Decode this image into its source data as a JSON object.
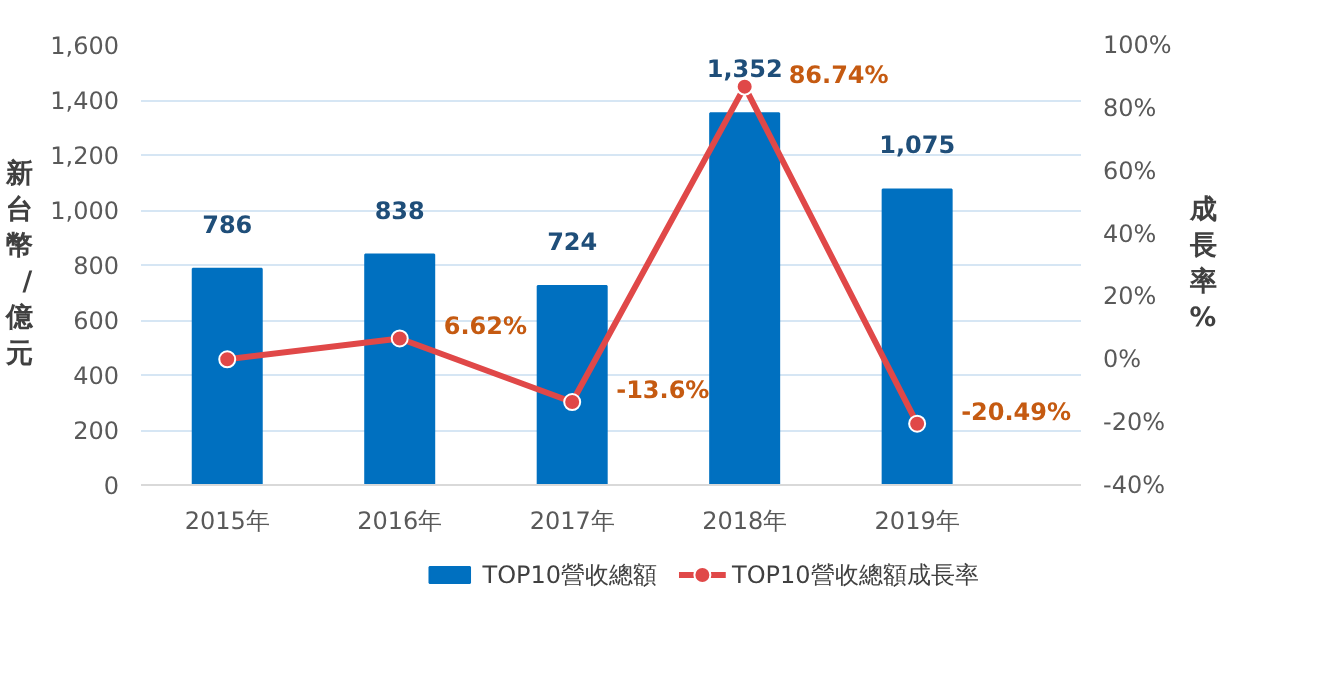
{
  "chart_data": {
    "type": "bar",
    "categories": [
      "2015年",
      "2016年",
      "2017年",
      "2018年",
      "2019年"
    ],
    "ylabel": "新台幣/億元",
    "y2label": "成長率%",
    "series": [
      {
        "name": "TOP10營收總額",
        "color": "#0070c0",
        "values": [
          786,
          838,
          724,
          1352,
          1075
        ],
        "value_labels": [
          "786",
          "838",
          "724",
          "1,352",
          "1,075"
        ]
      },
      {
        "name": "TOP10營收總額成長率",
        "type": "line",
        "axis": "y2",
        "color": "#e04848",
        "marker": "circle",
        "values": [
          0,
          6.62,
          -13.6,
          86.74,
          -20.49
        ],
        "value_labels": [
          null,
          "6.62%",
          "-13.6%",
          "86.74%",
          "-20.49%"
        ]
      }
    ],
    "ylim": [
      0,
      1600
    ],
    "yticks": [
      0,
      200,
      400,
      600,
      800,
      {
        "value": 1000,
        "label": "1,000"
      },
      {
        "value": 1200,
        "label": "1,200"
      },
      {
        "value": 1400,
        "label": "1,400"
      },
      {
        "value": 1600,
        "label": "1,600"
      }
    ],
    "y2lim": [
      -40,
      100
    ],
    "y2ticks": [
      {
        "value": -40,
        "label": "-40%"
      },
      {
        "value": -20,
        "label": "-20%"
      },
      {
        "value": 0,
        "label": "0%"
      },
      {
        "value": 20,
        "label": "20%"
      },
      {
        "value": 40,
        "label": "40%"
      },
      {
        "value": 60,
        "label": "60%"
      },
      {
        "value": 80,
        "label": "80%"
      },
      {
        "value": 100,
        "label": "100%"
      }
    ],
    "grid": "y",
    "legend": "bottom"
  }
}
